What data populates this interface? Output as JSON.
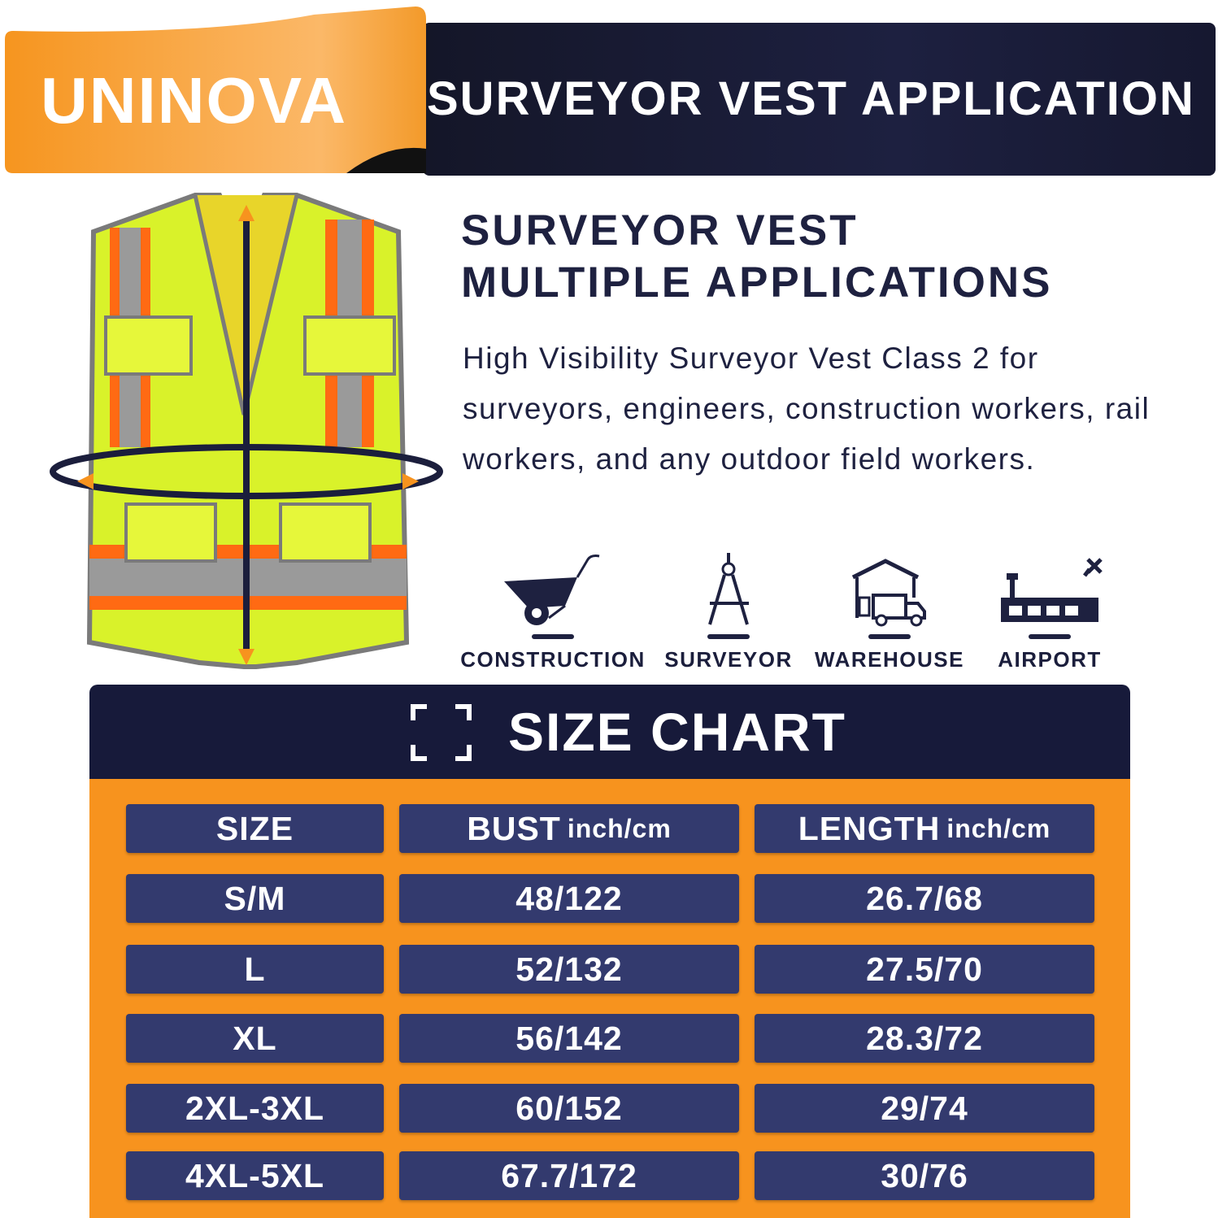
{
  "brand": {
    "logo": "UNINOVA"
  },
  "banner": {
    "title": "SURVEYOR VEST APPLICATION"
  },
  "heading": {
    "line1": "SURVEYOR VEST",
    "line2": "MULTIPLE APPLICATIONS"
  },
  "description": "High Visibility Surveyor Vest Class 2 for surveyors, engineers, construction workers, rail workers, and any outdoor field workers.",
  "applications": [
    {
      "label": "CONSTRUCTION",
      "icon": "wheelbarrow-icon"
    },
    {
      "label": "SURVEYOR",
      "icon": "compass-icon"
    },
    {
      "label": "WAREHOUSE",
      "icon": "warehouse-truck-icon"
    },
    {
      "label": "AIRPORT",
      "icon": "airport-icon"
    }
  ],
  "size_chart": {
    "title": "SIZE CHART",
    "headers": [
      {
        "label": "SIZE",
        "unit": ""
      },
      {
        "label": "BUST",
        "unit": "inch/cm"
      },
      {
        "label": "LENGTH",
        "unit": "inch/cm"
      }
    ],
    "rows": [
      [
        "S/M",
        "48/122",
        "26.7/68"
      ],
      [
        "L",
        "52/132",
        "27.5/70"
      ],
      [
        "XL",
        "56/142",
        "28.3/72"
      ],
      [
        "2XL-3XL",
        "60/152",
        "29/74"
      ],
      [
        "4XL-5XL",
        "67.7/172",
        "30/76"
      ]
    ]
  },
  "colors": {
    "navy": "#171a3a",
    "orange": "#f7931e",
    "cell": "#333a6e",
    "vest": "#d9f22a",
    "stripe": "#ff6a13"
  }
}
